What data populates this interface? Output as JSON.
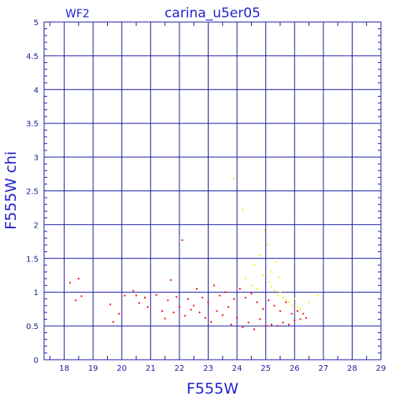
{
  "chart_data": {
    "type": "scatter",
    "title": "carina_u5er05",
    "chip_label": "WF2",
    "xlabel": "F555W",
    "ylabel": "F555W chi",
    "xlim": [
      17.3,
      29
    ],
    "ylim": [
      0,
      5
    ],
    "x_ticks": [
      "18",
      "19",
      "20",
      "21",
      "22",
      "23",
      "24",
      "25",
      "26",
      "27",
      "28",
      "29"
    ],
    "y_ticks": [
      "0",
      "0.5",
      "1",
      "1.5",
      "2",
      "2.5",
      "3",
      "3.5",
      "4",
      "4.5",
      "5"
    ],
    "grid": true,
    "colors": {
      "frame": "#1c1ca8",
      "text": "#2222cc",
      "red": "#ee1111",
      "yellow": "#ffee00",
      "white": "#ffffff"
    },
    "series": [
      {
        "color": "#ee1111",
        "points": [
          [
            18.2,
            1.14
          ],
          [
            18.4,
            0.88
          ],
          [
            18.5,
            1.2
          ],
          [
            18.6,
            0.94
          ],
          [
            19.6,
            0.82
          ],
          [
            19.7,
            0.56
          ],
          [
            19.9,
            0.68
          ],
          [
            20.1,
            0.95
          ],
          [
            20.4,
            1.02
          ],
          [
            20.5,
            0.95
          ],
          [
            20.6,
            0.84
          ],
          [
            20.8,
            0.92
          ],
          [
            20.9,
            0.78
          ],
          [
            21.2,
            0.96
          ],
          [
            21.4,
            0.72
          ],
          [
            21.5,
            0.61
          ],
          [
            21.6,
            0.88
          ],
          [
            21.7,
            1.18
          ],
          [
            21.8,
            0.7
          ],
          [
            21.9,
            0.93
          ],
          [
            22.0,
            0.78
          ],
          [
            22.1,
            1.77
          ],
          [
            22.2,
            0.65
          ],
          [
            22.3,
            0.9
          ],
          [
            22.4,
            0.74
          ],
          [
            22.5,
            0.8
          ],
          [
            22.6,
            1.05
          ],
          [
            22.7,
            0.7
          ],
          [
            22.8,
            0.92
          ],
          [
            22.9,
            0.62
          ],
          [
            23.0,
            0.85
          ],
          [
            23.1,
            0.56
          ],
          [
            23.2,
            1.1
          ],
          [
            23.3,
            0.72
          ],
          [
            23.4,
            0.95
          ],
          [
            23.5,
            0.66
          ],
          [
            23.6,
            1.0
          ],
          [
            23.7,
            0.78
          ],
          [
            23.8,
            0.52
          ],
          [
            23.9,
            0.9
          ],
          [
            24.0,
            0.62
          ],
          [
            24.1,
            1.05
          ],
          [
            24.2,
            0.48
          ],
          [
            24.3,
            0.92
          ],
          [
            24.4,
            0.55
          ],
          [
            24.5,
            0.98
          ],
          [
            24.6,
            0.45
          ],
          [
            24.7,
            0.85
          ],
          [
            24.8,
            0.6
          ],
          [
            24.9,
            0.75
          ],
          [
            25.0,
            0.5
          ],
          [
            25.1,
            0.88
          ],
          [
            25.2,
            0.52
          ],
          [
            25.3,
            0.8
          ],
          [
            25.4,
            0.5
          ],
          [
            25.5,
            0.72
          ],
          [
            25.6,
            0.55
          ],
          [
            25.7,
            0.85
          ],
          [
            25.8,
            0.52
          ],
          [
            25.9,
            0.68
          ],
          [
            26.0,
            0.58
          ],
          [
            26.1,
            0.72
          ],
          [
            26.2,
            0.6
          ],
          [
            26.3,
            0.68
          ],
          [
            26.4,
            0.62
          ]
        ]
      },
      {
        "color": "#ffee00",
        "points": [
          [
            23.9,
            2.68
          ],
          [
            24.2,
            2.22
          ],
          [
            24.6,
            1.4
          ],
          [
            24.8,
            1.55
          ],
          [
            24.95,
            1.92
          ],
          [
            25.05,
            1.7
          ],
          [
            25.2,
            1.3
          ],
          [
            24.3,
            1.2
          ],
          [
            24.5,
            1.1
          ],
          [
            24.7,
            1.05
          ],
          [
            24.9,
            1.25
          ],
          [
            25.1,
            1.15
          ],
          [
            25.2,
            1.08
          ],
          [
            25.3,
            1.02
          ],
          [
            25.4,
            0.95
          ],
          [
            25.5,
            1.0
          ],
          [
            25.6,
            0.92
          ],
          [
            25.7,
            0.88
          ],
          [
            25.8,
            0.85
          ],
          [
            25.9,
            0.8
          ],
          [
            26.0,
            0.9
          ],
          [
            26.1,
            0.78
          ],
          [
            26.2,
            0.75
          ],
          [
            26.5,
            0.85
          ],
          [
            25.35,
            1.45
          ],
          [
            25.45,
            1.22
          ],
          [
            26.8,
            0.95
          ]
        ]
      },
      {
        "color": "#ffffff",
        "points": [
          [
            24.05,
            1.68
          ],
          [
            24.4,
            1.02
          ],
          [
            25.55,
            1.3
          ]
        ]
      }
    ]
  }
}
